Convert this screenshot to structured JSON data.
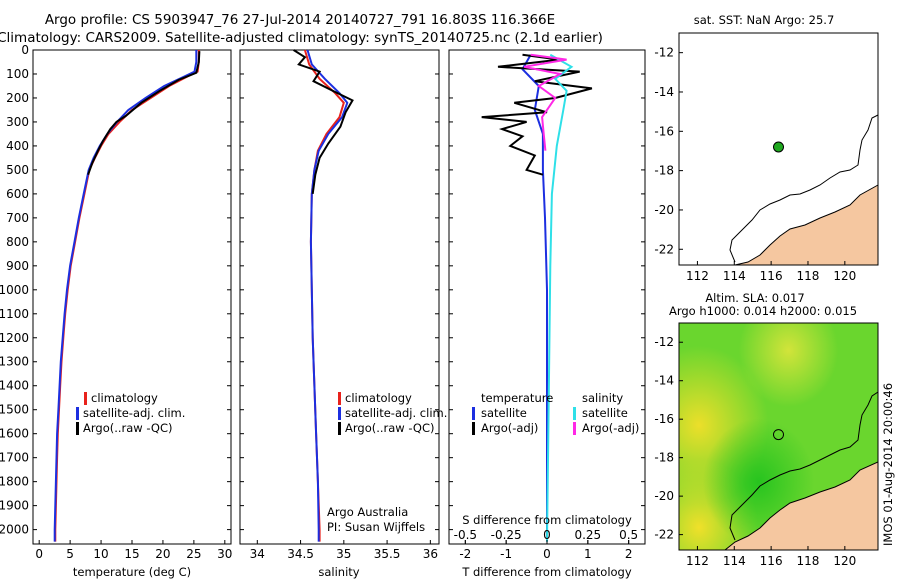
{
  "titles": {
    "line1": "Argo profile: CS 5903947_76 27-Jul-2014 20140727_791 16.803S 116.366E",
    "line2": "Climatology: CARS2009. Satellite-adjusted climatology: synTS_20140725.nc (2.1d earlier)"
  },
  "colors": {
    "climatology": "#e8221c",
    "satellite": "#1c2fe0",
    "argo": "#000000",
    "sal_satellite": "#2fe0e8",
    "sal_argo": "#ff28e6",
    "land": "#f5c7a0",
    "float_marker": "#1fa81f"
  },
  "chart_data": [
    {
      "type": "line",
      "id": "temperature",
      "xlabel": "temperature (deg C)",
      "ylabel": "",
      "xlim": [
        -1,
        31
      ],
      "ylim": [
        2060,
        0
      ],
      "xticks": [
        "0",
        "5",
        "10",
        "15",
        "20",
        "25",
        "30"
      ],
      "yticks": [
        "0",
        "100",
        "200",
        "300",
        "400",
        "500",
        "600",
        "700",
        "800",
        "900",
        "1000",
        "1100",
        "1200",
        "1300",
        "1400",
        "1500",
        "1600",
        "1700",
        "1800",
        "1900",
        "2000"
      ],
      "legend": [
        "climatology",
        "satellite-adj. clim.",
        "Argo(..raw -QC)"
      ],
      "series": [
        {
          "name": "climatology",
          "color_key": "climatology",
          "points": [
            [
              25.8,
              0
            ],
            [
              25.8,
              50
            ],
            [
              25.6,
              90
            ],
            [
              24,
              110
            ],
            [
              21,
              150
            ],
            [
              18,
              200
            ],
            [
              15,
              250
            ],
            [
              13,
              300
            ],
            [
              11.2,
              350
            ],
            [
              10,
              400
            ],
            [
              9,
              450
            ],
            [
              8.1,
              500
            ],
            [
              7.3,
              600
            ],
            [
              6.5,
              700
            ],
            [
              5.8,
              800
            ],
            [
              5.1,
              900
            ],
            [
              4.6,
              1000
            ],
            [
              4.2,
              1100
            ],
            [
              3.9,
              1200
            ],
            [
              3.6,
              1300
            ],
            [
              3.4,
              1400
            ],
            [
              3.2,
              1500
            ],
            [
              3.0,
              1600
            ],
            [
              2.9,
              1700
            ],
            [
              2.8,
              1800
            ],
            [
              2.7,
              1900
            ],
            [
              2.6,
              2000
            ],
            [
              2.6,
              2050
            ]
          ]
        },
        {
          "name": "satellite-adj. clim.",
          "color_key": "satellite",
          "points": [
            [
              25.4,
              0
            ],
            [
              25.4,
              50
            ],
            [
              25.1,
              90
            ],
            [
              23.5,
              110
            ],
            [
              20.2,
              150
            ],
            [
              17.2,
              200
            ],
            [
              14.4,
              250
            ],
            [
              12.6,
              300
            ],
            [
              11,
              350
            ],
            [
              9.8,
              400
            ],
            [
              8.8,
              450
            ],
            [
              8,
              500
            ],
            [
              7.2,
              600
            ],
            [
              6.4,
              700
            ],
            [
              5.7,
              800
            ],
            [
              5.0,
              900
            ],
            [
              4.5,
              1000
            ],
            [
              4.1,
              1100
            ],
            [
              3.8,
              1200
            ],
            [
              3.5,
              1300
            ],
            [
              3.3,
              1400
            ],
            [
              3.1,
              1500
            ],
            [
              2.9,
              1600
            ],
            [
              2.8,
              1700
            ],
            [
              2.7,
              1800
            ],
            [
              2.6,
              1900
            ],
            [
              2.5,
              2000
            ],
            [
              2.5,
              2050
            ]
          ]
        },
        {
          "name": "Argo(..raw -QC)",
          "color_key": "argo",
          "points": [
            [
              25.9,
              5
            ],
            [
              25.8,
              50
            ],
            [
              25.4,
              95
            ],
            [
              22.5,
              125
            ],
            [
              19.5,
              170
            ],
            [
              16.5,
              220
            ],
            [
              14,
              275
            ],
            [
              12.5,
              300
            ],
            [
              11.5,
              330
            ],
            [
              10.3,
              380
            ],
            [
              9.5,
              420
            ],
            [
              8.6,
              470
            ],
            [
              7.9,
              520
            ]
          ]
        }
      ]
    },
    {
      "type": "line",
      "id": "salinity",
      "xlabel": "salinity",
      "ylabel": "",
      "xlim": [
        33.8,
        36.1
      ],
      "ylim": [
        2060,
        0
      ],
      "xticks": [
        "34",
        "34.5",
        "35",
        "35.5",
        "36"
      ],
      "legend": [
        "climatology",
        "satellite-adj. clim.",
        "Argo(..raw -QC)"
      ],
      "annotation": [
        "Argo Australia",
        "PI: Susan Wijffels"
      ],
      "series": [
        {
          "name": "climatology",
          "color_key": "climatology",
          "points": [
            [
              34.55,
              0
            ],
            [
              34.6,
              60
            ],
            [
              34.72,
              120
            ],
            [
              34.9,
              180
            ],
            [
              35.0,
              220
            ],
            [
              34.95,
              280
            ],
            [
              34.8,
              350
            ],
            [
              34.7,
              420
            ],
            [
              34.66,
              500
            ],
            [
              34.63,
              600
            ],
            [
              34.62,
              800
            ],
            [
              34.63,
              1000
            ],
            [
              34.64,
              1200
            ],
            [
              34.66,
              1400
            ],
            [
              34.68,
              1600
            ],
            [
              34.7,
              1800
            ],
            [
              34.72,
              2000
            ],
            [
              34.72,
              2050
            ]
          ]
        },
        {
          "name": "satellite-adj. clim.",
          "color_key": "satellite",
          "points": [
            [
              34.58,
              0
            ],
            [
              34.63,
              60
            ],
            [
              34.78,
              120
            ],
            [
              34.95,
              180
            ],
            [
              35.04,
              220
            ],
            [
              34.98,
              280
            ],
            [
              34.82,
              350
            ],
            [
              34.71,
              420
            ],
            [
              34.66,
              500
            ],
            [
              34.63,
              600
            ],
            [
              34.62,
              800
            ],
            [
              34.63,
              1000
            ],
            [
              34.64,
              1200
            ],
            [
              34.66,
              1400
            ],
            [
              34.68,
              1600
            ],
            [
              34.7,
              1800
            ],
            [
              34.71,
              2000
            ],
            [
              34.71,
              2050
            ]
          ]
        },
        {
          "name": "Argo(..raw -QC)",
          "color_key": "argo",
          "points": [
            [
              34.42,
              0
            ],
            [
              34.55,
              30
            ],
            [
              34.48,
              60
            ],
            [
              34.72,
              90
            ],
            [
              34.65,
              130
            ],
            [
              34.9,
              175
            ],
            [
              35.1,
              210
            ],
            [
              35.02,
              260
            ],
            [
              34.96,
              320
            ],
            [
              34.82,
              390
            ],
            [
              34.72,
              450
            ],
            [
              34.67,
              520
            ],
            [
              34.64,
              600
            ]
          ]
        }
      ]
    },
    {
      "type": "line",
      "id": "difference",
      "xlabel": "T difference from climatology",
      "xlabel_top": "S difference from climatology",
      "xlim": [
        -2.4,
        2.4
      ],
      "ylim": [
        2060,
        0
      ],
      "xticks": [
        "-2",
        "-1",
        "0",
        "1",
        "2"
      ],
      "xticks_top": [
        "-0.5",
        "-0.25",
        "0",
        "0.25",
        "0.5"
      ],
      "legend_temperature": [
        "temperature",
        "satellite",
        "Argo(-adj)"
      ],
      "legend_salinity": [
        "salinity",
        "satellite",
        "Argo(-adj)"
      ],
      "series": [
        {
          "name": "T satellite",
          "color_key": "satellite",
          "points": [
            [
              -0.4,
              20
            ],
            [
              -0.6,
              80
            ],
            [
              -0.2,
              150
            ],
            [
              -0.3,
              250
            ],
            [
              -0.1,
              350
            ],
            [
              -0.1,
              500
            ],
            [
              -0.05,
              700
            ],
            [
              0,
              1000
            ],
            [
              0,
              1500
            ],
            [
              0,
              2000
            ],
            [
              0,
              2050
            ]
          ]
        },
        {
          "name": "T Argo(-adj)",
          "color_key": "argo",
          "points": [
            [
              -0.6,
              20
            ],
            [
              0.3,
              40
            ],
            [
              -1.2,
              70
            ],
            [
              0.8,
              90
            ],
            [
              -0.3,
              130
            ],
            [
              1.1,
              160
            ],
            [
              0.2,
              200
            ],
            [
              -0.8,
              220
            ],
            [
              0,
              260
            ],
            [
              -1.6,
              280
            ],
            [
              -0.5,
              300
            ],
            [
              -1.1,
              330
            ],
            [
              -0.6,
              360
            ],
            [
              -0.9,
              400
            ],
            [
              -0.3,
              440
            ],
            [
              -0.5,
              500
            ],
            [
              -0.1,
              520
            ]
          ]
        },
        {
          "name": "S satellite",
          "color_key": "sal_satellite",
          "points": [
            [
              0.02,
              20
            ],
            [
              0.15,
              70
            ],
            [
              0.05,
              120
            ],
            [
              0.12,
              170
            ],
            [
              0.1,
              250
            ],
            [
              0.06,
              400
            ],
            [
              0.03,
              600
            ],
            [
              0.02,
              900
            ],
            [
              0.01,
              1500
            ],
            [
              0,
              2050
            ]
          ]
        },
        {
          "name": "S Argo(-adj)",
          "color_key": "sal_argo",
          "points": [
            [
              -0.1,
              20
            ],
            [
              0.12,
              40
            ],
            [
              -0.14,
              70
            ],
            [
              0.08,
              100
            ],
            [
              -0.05,
              150
            ],
            [
              0.05,
              200
            ],
            [
              -0.03,
              280
            ],
            [
              -0.02,
              350
            ],
            [
              -0.01,
              420
            ]
          ]
        }
      ]
    },
    {
      "type": "heatmap",
      "id": "sst_map",
      "title": "sat. SST: NaN  Argo: 25.7",
      "xticks": [
        "112",
        "114",
        "116",
        "118",
        "120"
      ],
      "yticks": [
        "-12",
        "-14",
        "-16",
        "-18",
        "-20",
        "-22"
      ],
      "xlim": [
        111,
        121.8
      ],
      "ylim": [
        -22.8,
        -11
      ],
      "float_position": [
        116.4,
        -16.8
      ]
    },
    {
      "type": "heatmap",
      "id": "sla_map",
      "title_line1": "Altim. SLA: 0.017",
      "title_line2": "Argo h1000: 0.014 h2000: 0.015",
      "xticks": [
        "112",
        "114",
        "116",
        "118",
        "120"
      ],
      "yticks": [
        "-12",
        "-14",
        "-16",
        "-18",
        "-20",
        "-22"
      ],
      "xlim": [
        111,
        121.8
      ],
      "ylim": [
        -22.8,
        -11
      ],
      "float_position": [
        116.4,
        -16.8
      ],
      "side_label": "IMOS 01-Aug-2014 20:00:46"
    }
  ]
}
